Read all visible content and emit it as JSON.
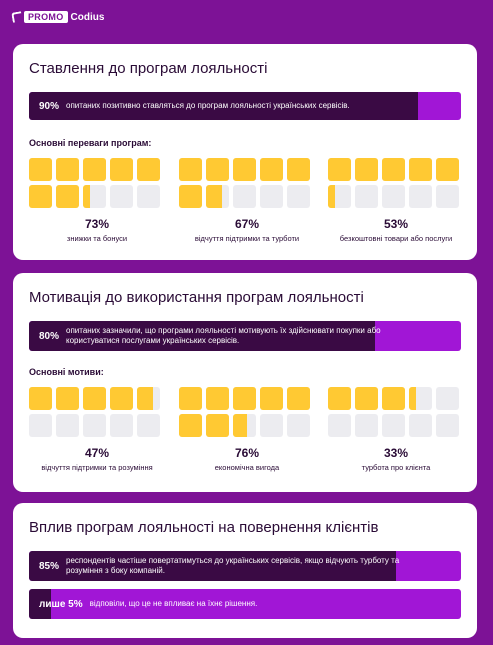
{
  "logo": {
    "brand_box": "PROMO",
    "brand_text": "Codius"
  },
  "colors": {
    "background": "#7d1296",
    "accent": "#a116d6",
    "dark": "#3a0a44",
    "square_fill": "#ffc933",
    "square_empty": "#ececf0"
  },
  "section1": {
    "title": "Ставлення до програм лояльності",
    "stat": {
      "percent_label": "90%",
      "value": 90,
      "text": "опитаних позитивно ставляться до програм лояльності українських сервісів."
    },
    "subtitle": "Основні переваги програм:",
    "groups": [
      {
        "percent_label": "73%",
        "value": 73,
        "label": "знижки та бонуси"
      },
      {
        "percent_label": "67%",
        "value": 67,
        "label": "відчуття підтримки та турботи"
      },
      {
        "percent_label": "53%",
        "value": 53,
        "label": "безкоштовні товари або послуги"
      }
    ]
  },
  "section2": {
    "title": "Мотивація до використання програм лояльності",
    "stat": {
      "percent_label": "80%",
      "value": 80,
      "text": "опитаних зазначили, що програми лояльності мотивують їх здійснювати покупки або користуватися послугами українських сервісів."
    },
    "subtitle": "Основні мотиви:",
    "groups": [
      {
        "percent_label": "47%",
        "value": 47,
        "label": "відчуття підтримки та розуміння"
      },
      {
        "percent_label": "76%",
        "value": 76,
        "label": "економічна вигода"
      },
      {
        "percent_label": "33%",
        "value": 33,
        "label": "турбота про клієнта"
      }
    ]
  },
  "section3": {
    "title": "Вплив програм лояльності на повернення клієнтів",
    "stat1": {
      "percent_label": "85%",
      "value": 85,
      "text": "респондентів частіше повертатимуться до українських сервісів, якщо відчують турботу та розуміння з боку компаній."
    },
    "stat2": {
      "percent_label": "лише 5%",
      "value": 5,
      "text": "відповіли, що це не впливає на їхнє рішення."
    }
  }
}
